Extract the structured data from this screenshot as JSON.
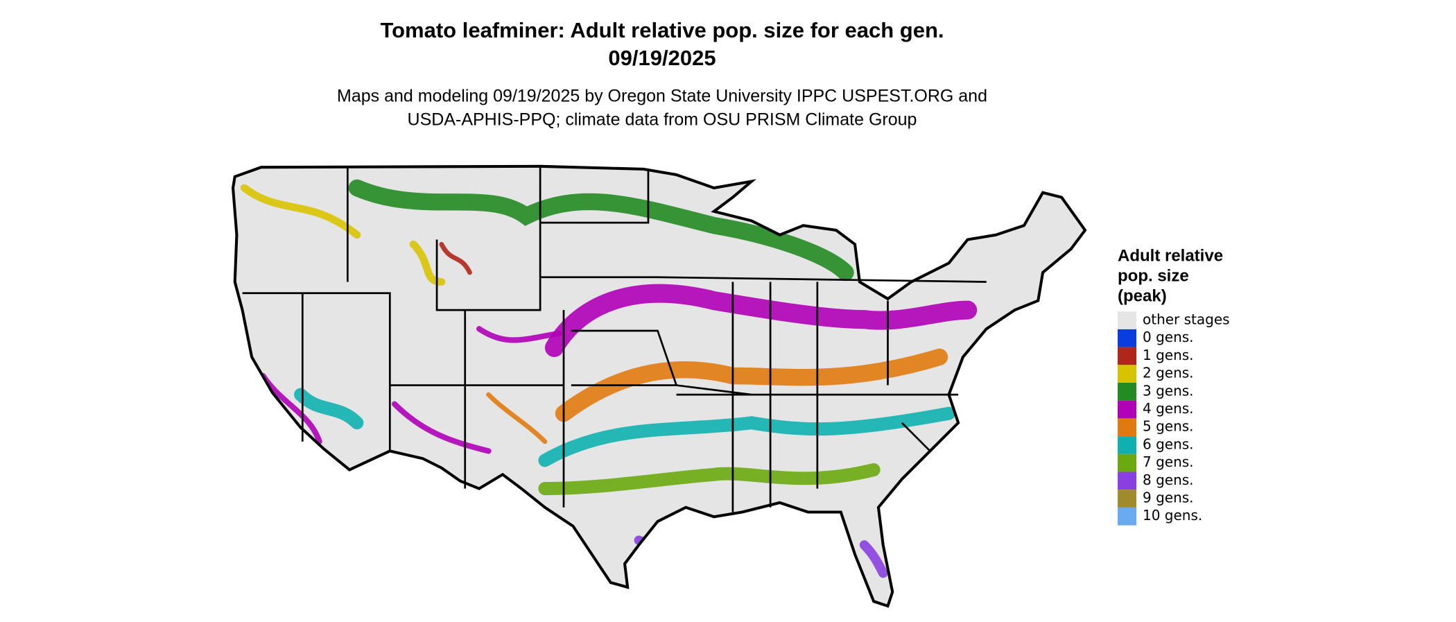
{
  "header": {
    "title": "Tomato leafminer: Adult relative pop. size for each gen.",
    "date": "09/19/2025",
    "subtitle_lines": [
      "Maps and modeling 09/19/2025 by Oregon State University IPPC USPEST.ORG and",
      "USDA-APHIS-PPQ; climate data from OSU PRISM Climate Group"
    ]
  },
  "legend": {
    "title_lines": [
      "Adult relative",
      "pop. size",
      "(peak)"
    ],
    "items": [
      {
        "label": "other stages",
        "color": "#e5e5e5"
      },
      {
        "label": "0 gens.",
        "color": "#0a3de0"
      },
      {
        "label": "1 gens.",
        "color": "#b0261a"
      },
      {
        "label": "2 gens.",
        "color": "#d8c300"
      },
      {
        "label": "3 gens.",
        "color": "#228b22"
      },
      {
        "label": "4 gens.",
        "color": "#b000b8"
      },
      {
        "label": "5 gens.",
        "color": "#e07a10"
      },
      {
        "label": "6 gens.",
        "color": "#10b0b0"
      },
      {
        "label": "7 gens.",
        "color": "#6aaa10"
      },
      {
        "label": "8 gens.",
        "color": "#8a40e0"
      },
      {
        "label": "9 gens.",
        "color": "#a08a2a"
      },
      {
        "label": "10 gens.",
        "color": "#6aaaf0"
      }
    ]
  }
}
